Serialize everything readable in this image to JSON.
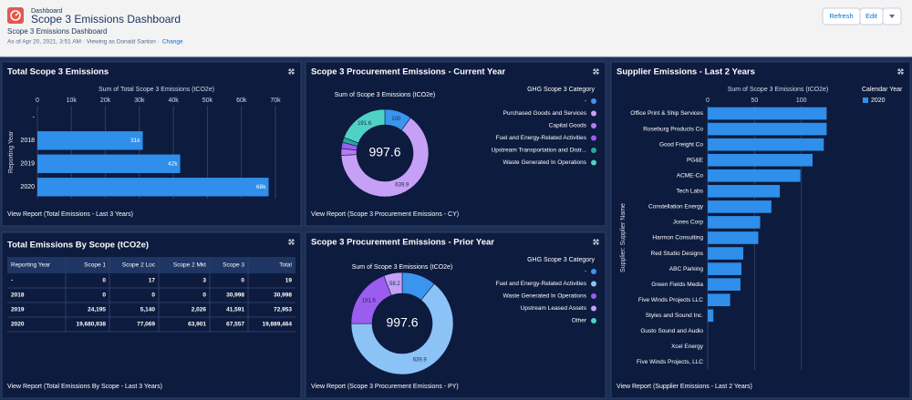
{
  "header": {
    "breadcrumb": "Dashboard",
    "title": "Scope 3 Emissions Dashboard",
    "subtitle": "Scope 3 Emissions Dashboard",
    "meta": "As of Apr 20, 2021, 3:51 AM · Viewing as Donald Santon ·",
    "change_link": "Change",
    "buttons": [
      "Refresh",
      "Edit"
    ]
  },
  "chart_data": [
    {
      "type": "hbar",
      "title": "Total Scope 3 Emissions",
      "x_label": "Sum of Total Scope 3 Emissions (tCO2e)",
      "y_label": "Reporting Year",
      "categories": [
        "-",
        "2018",
        "2019",
        "2020"
      ],
      "values": [
        null,
        31000,
        42000,
        68000
      ],
      "value_labels": [
        null,
        "31k",
        "42k",
        "68k"
      ],
      "color": "#2f8fea",
      "xlim": [
        0,
        70000
      ],
      "xticks": [
        0,
        {
          "value": 10000,
          "label": "10k"
        },
        {
          "value": 20000,
          "label": "20k"
        },
        {
          "value": 30000,
          "label": "30k"
        },
        {
          "value": 40000,
          "label": "40k"
        },
        {
          "value": 50000,
          "label": "50k"
        },
        {
          "value": 60000,
          "label": "60k"
        },
        {
          "value": 70000,
          "label": "70k"
        }
      ],
      "grid": true,
      "footer": "View Report (Total Emissions - Last 3 Years)"
    },
    {
      "type": "donut",
      "title": "Scope 3 Procurement Emissions - Current Year",
      "subtitle": "Sum of Scope 3 Emissions (tCO2e)",
      "total": 997.6,
      "legend_title": "GHG Scope 3 Category",
      "categories": [
        "-",
        "Purchased Goods and Services",
        "Capital Goods",
        "Fuel and Energy-Related Activities",
        "Upstream Transportation and Distr...",
        "Waste Generated In Operations"
      ],
      "values": [
        100,
        639.9,
        25,
        23,
        18.1,
        191.6
      ],
      "value_labels": [
        "100",
        "639.9",
        null,
        null,
        null,
        "191.6"
      ],
      "colors": [
        "#3a95ee",
        "#c6a0f7",
        "#b57af5",
        "#9b5cf0",
        "#2aa89a",
        "#4fd1c5"
      ],
      "footer": "View Report (Scope 3 Procurement Emissions - CY)"
    },
    {
      "type": "hbar",
      "title": "Supplier Emissions - Last 2 Years",
      "x_label": "Sum of Scope 3 Emissions (tCO2e)",
      "y_label": "Supplier: Supplier Name",
      "legend_title": "Calendar Year",
      "categories": [
        "Office Print & Ship Services",
        "Roseburg Products Co",
        "Good Freight Co",
        "PG&E",
        "ACME-Co",
        "Tech Labs",
        "Constellation Energy",
        "Jones Corp",
        "Harmon Consulting",
        "Red Studio Designs",
        "ABC Parking",
        "Green Fields Media",
        "Five Winds Projects LLC",
        "Styles and Sound Inc.",
        "Gusto Sound and Audio",
        "Xcel Energy",
        "Five Winds Projects, LLC"
      ],
      "series": [
        {
          "name": "2020",
          "color": "#2f8fea",
          "values": [
            127,
            127,
            124,
            112,
            99,
            77,
            68,
            56,
            54,
            38,
            36,
            35,
            24,
            6,
            0,
            0,
            0
          ]
        }
      ],
      "xlim": [
        0,
        150
      ],
      "xticks": [
        0,
        50,
        100
      ],
      "grid": true,
      "legend": "top-right",
      "footer": "View Report (Supplier Emissions - Last 2 Years)"
    },
    {
      "type": "donut",
      "title": "Scope 3 Procurement Emissions - Prior Year",
      "subtitle": "Sum of Scope 3 Emissions (tCO2e)",
      "total": 997.6,
      "legend_title": "GHG Scope 3 Category",
      "categories": [
        "-",
        "Fuel and Energy-Related Activities",
        "Waste Generated In Operations",
        "Upstream Leased Assets",
        "Other"
      ],
      "values": [
        107.9,
        639.9,
        191.6,
        58.2,
        0
      ],
      "value_labels": [
        null,
        "639.9",
        "191.6",
        "58.2",
        null
      ],
      "colors": [
        "#3a95ee",
        "#8cc3f7",
        "#9b5cf0",
        "#c6a0f7",
        "#4fd1c5"
      ],
      "footer": "View Report (Scope 3 Procurement Emissions - PY)"
    }
  ],
  "table": {
    "title": "Total Emissions By Scope (tCO2e)",
    "columns": [
      "Reporting Year",
      "Scope 1",
      "Scope 2 Loc",
      "Scope 2 Mkt",
      "Scope 3",
      "Total"
    ],
    "rows": [
      [
        "-",
        "0",
        "17",
        "3",
        "0",
        "19"
      ],
      [
        "2018",
        "0",
        "0",
        "0",
        "30,998",
        "30,998"
      ],
      [
        "2019",
        "24,195",
        "5,140",
        "2,026",
        "41,591",
        "72,953"
      ],
      [
        "2020",
        "19,680,938",
        "77,069",
        "63,901",
        "67,557",
        "19,889,464"
      ]
    ],
    "footer": "View Report (Total Emissions By Scope - Last 3 Years)"
  }
}
